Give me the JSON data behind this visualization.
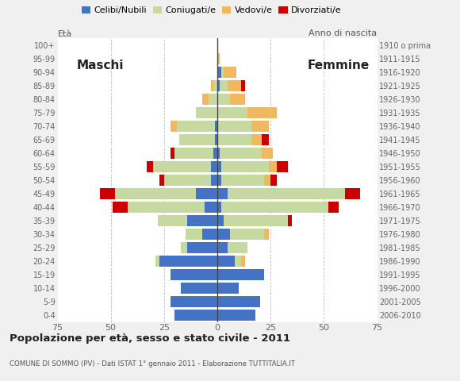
{
  "age_groups": [
    "0-4",
    "5-9",
    "10-14",
    "15-19",
    "20-24",
    "25-29",
    "30-34",
    "35-39",
    "40-44",
    "45-49",
    "50-54",
    "55-59",
    "60-64",
    "65-69",
    "70-74",
    "75-79",
    "80-84",
    "85-89",
    "90-94",
    "95-99",
    "100+"
  ],
  "birth_years": [
    "2006-2010",
    "2001-2005",
    "1996-2000",
    "1991-1995",
    "1986-1990",
    "1981-1985",
    "1976-1980",
    "1971-1975",
    "1966-1970",
    "1961-1965",
    "1956-1960",
    "1951-1955",
    "1946-1950",
    "1941-1945",
    "1936-1940",
    "1931-1935",
    "1926-1930",
    "1921-1925",
    "1916-1920",
    "1911-1915",
    "1910 o prima"
  ],
  "males": {
    "celibe": [
      20,
      22,
      17,
      22,
      27,
      14,
      7,
      14,
      6,
      10,
      3,
      3,
      2,
      1,
      1,
      0,
      0,
      0,
      0,
      0,
      0
    ],
    "coniugato": [
      0,
      0,
      0,
      0,
      2,
      3,
      8,
      14,
      36,
      38,
      22,
      27,
      18,
      17,
      18,
      10,
      4,
      2,
      0,
      0,
      0
    ],
    "vedovo": [
      0,
      0,
      0,
      0,
      0,
      0,
      0,
      0,
      0,
      0,
      0,
      0,
      0,
      0,
      3,
      0,
      3,
      1,
      0,
      0,
      0
    ],
    "divorziato": [
      0,
      0,
      0,
      0,
      0,
      0,
      0,
      0,
      7,
      7,
      2,
      3,
      2,
      0,
      0,
      0,
      0,
      0,
      0,
      0,
      0
    ]
  },
  "females": {
    "nubile": [
      18,
      20,
      10,
      22,
      8,
      5,
      6,
      3,
      2,
      5,
      2,
      2,
      1,
      0,
      0,
      0,
      0,
      1,
      2,
      0,
      0
    ],
    "coniugata": [
      0,
      0,
      0,
      0,
      3,
      9,
      16,
      30,
      50,
      55,
      20,
      22,
      20,
      16,
      16,
      14,
      6,
      4,
      1,
      0,
      0
    ],
    "vedova": [
      0,
      0,
      0,
      0,
      2,
      0,
      2,
      0,
      0,
      0,
      3,
      4,
      5,
      5,
      8,
      14,
      7,
      6,
      6,
      1,
      0
    ],
    "divorziata": [
      0,
      0,
      0,
      0,
      0,
      0,
      0,
      2,
      5,
      7,
      3,
      5,
      0,
      3,
      0,
      0,
      0,
      2,
      0,
      0,
      0
    ]
  },
  "colors": {
    "celibe_nubile": "#4472c4",
    "coniugato_a": "#c5d9a0",
    "vedovo_a": "#f0b95f",
    "divorziato_a": "#cc0000"
  },
  "xlim": 75,
  "title": "Popolazione per età, sesso e stato civile - 2011",
  "subtitle": "COMUNE DI SOMMO (PV) - Dati ISTAT 1° gennaio 2011 - Elaborazione TUTTITALIA.IT",
  "age_label": "Età",
  "birth_label": "Anno di nascita",
  "maschi_label": "Maschi",
  "femmine_label": "Femmine",
  "legend_labels": [
    "Celibi/Nubili",
    "Coniugati/e",
    "Vedovi/e",
    "Divorziati/e"
  ],
  "bg_color": "#f0f0f0",
  "plot_bg": "#ffffff"
}
